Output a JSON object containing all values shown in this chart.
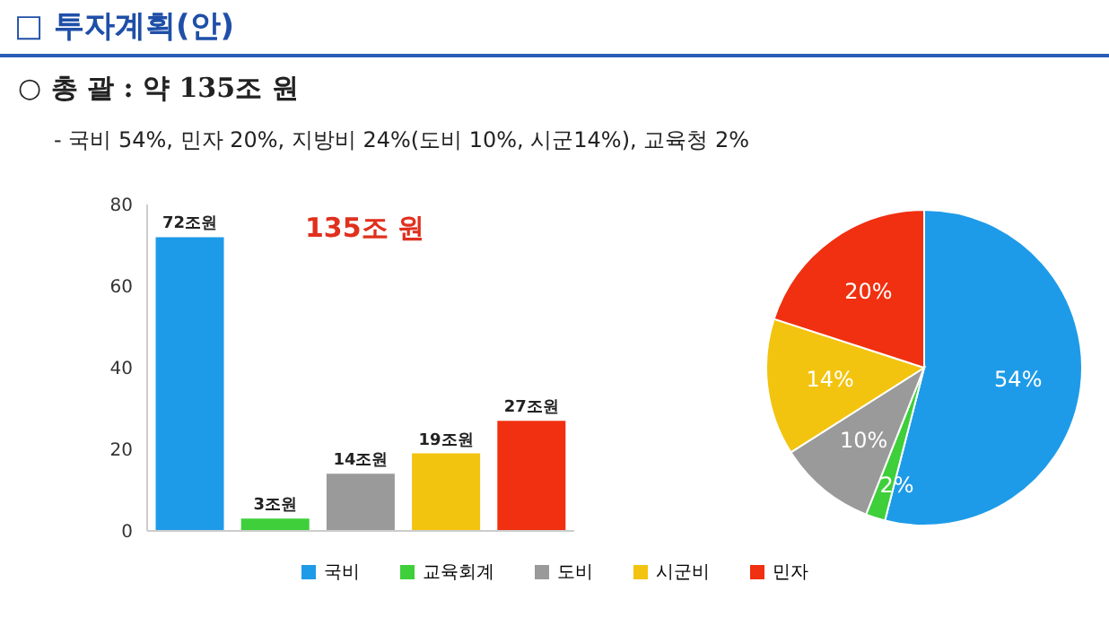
{
  "chart_data": [
    {
      "type": "bar",
      "title": "□ 투자계획(안)",
      "subtitle": "○ 총 괄 : 약 135조 원",
      "annotations": [
        "- 국비 54%, 민자 20%, 지방비 24%(도비 10%, 시군14%), 교육청 2%",
        "135조 원"
      ],
      "categories": [
        null,
        null,
        null,
        null,
        null
      ],
      "values": [
        72,
        3,
        14,
        19,
        27
      ],
      "colors": [
        "#1e9be8",
        "#3ecf3a",
        "#9a9a9a",
        "#f2c40f",
        "#f03010"
      ],
      "value_labels": [
        "72조원",
        "3조원",
        "14조원",
        "19조원",
        "27조원"
      ],
      "ylim": [
        0,
        80
      ],
      "yticks": [
        0,
        20,
        40,
        60,
        80
      ],
      "tick_labels": "y"
    },
    {
      "type": "pie",
      "categories": [
        "국비",
        "교육회계",
        "도비",
        "시군비",
        "민자"
      ],
      "values": [
        54,
        2,
        10,
        14,
        20
      ],
      "colors": [
        "#1e9be8",
        "#3ecf3a",
        "#9a9a9a",
        "#f2c40f",
        "#f03010"
      ],
      "value_labels": [
        "54%",
        "2%",
        "10%",
        "14%",
        "20%"
      ],
      "legend": "bottom"
    }
  ]
}
